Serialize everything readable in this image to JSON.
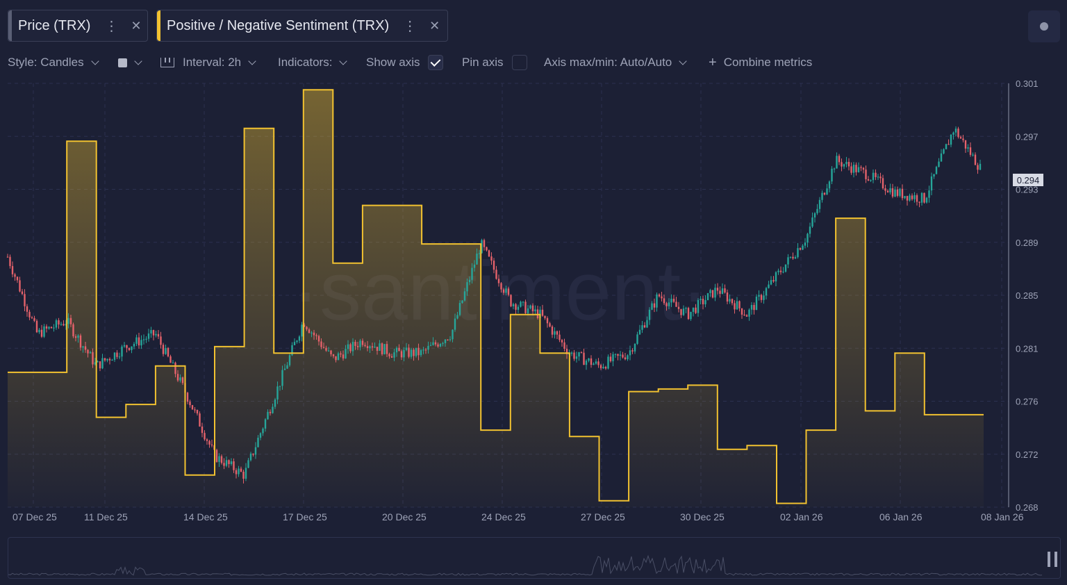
{
  "tabs": [
    {
      "label": "Price (TRX)",
      "accent": "#5a5f75"
    },
    {
      "label": "Positive / Negative Sentiment (TRX)",
      "accent": "#f2c230"
    }
  ],
  "toolbar": {
    "style": "Style: Candles",
    "interval": "Interval: 2h",
    "indicators": "Indicators:",
    "show_axis": "Show axis",
    "show_axis_checked": true,
    "pin_axis": "Pin axis",
    "pin_axis_checked": false,
    "axis_maxmin": "Axis max/min: Auto/Auto",
    "combine": "Combine metrics"
  },
  "icons": [
    "kebab-icon",
    "close-icon",
    "chevron-down-icon",
    "interval-icon",
    "check-icon",
    "plus-icon",
    "settings-dot-icon"
  ],
  "watermark": "·santiment·",
  "colors": {
    "background": "#1c2035",
    "candle_up": "#26a69a",
    "candle_down": "#e5626b",
    "sentiment_line": "#f2c230"
  },
  "chart_data": {
    "type": "candlestick",
    "x_ticks": [
      "07 Dec 25",
      "11 Dec 25",
      "14 Dec 25",
      "17 Dec 25",
      "20 Dec 25",
      "24 Dec 25",
      "27 Dec 25",
      "30 Dec 25",
      "02 Jan 26",
      "06 Jan 26",
      "08 Jan 26"
    ],
    "y_ticks": [
      "0.301",
      "0.297",
      "0.293",
      "0.289",
      "0.285",
      "0.281",
      "0.276",
      "0.272",
      "0.268"
    ],
    "y_range": [
      0.268,
      0.301
    ],
    "current_price": "0.294",
    "price_close_path": [
      {
        "date": "2025-12-06",
        "close": 0.2875
      },
      {
        "date": "2025-12-07",
        "close": 0.2815
      },
      {
        "date": "2025-12-08",
        "close": 0.2825
      },
      {
        "date": "2025-12-09",
        "close": 0.279
      },
      {
        "date": "2025-12-10",
        "close": 0.2805
      },
      {
        "date": "2025-12-11",
        "close": 0.2815
      },
      {
        "date": "2025-12-12",
        "close": 0.277
      },
      {
        "date": "2025-12-13",
        "close": 0.272
      },
      {
        "date": "2025-12-14",
        "close": 0.2705
      },
      {
        "date": "2025-12-15",
        "close": 0.2765
      },
      {
        "date": "2025-12-16",
        "close": 0.2825
      },
      {
        "date": "2025-12-17",
        "close": 0.2795
      },
      {
        "date": "2025-12-18",
        "close": 0.281
      },
      {
        "date": "2025-12-19",
        "close": 0.28
      },
      {
        "date": "2025-12-20",
        "close": 0.28
      },
      {
        "date": "2025-12-21",
        "close": 0.2815
      },
      {
        "date": "2025-12-22",
        "close": 0.2885
      },
      {
        "date": "2025-12-23",
        "close": 0.284
      },
      {
        "date": "2025-12-24",
        "close": 0.283
      },
      {
        "date": "2025-12-25",
        "close": 0.28
      },
      {
        "date": "2025-12-26",
        "close": 0.279
      },
      {
        "date": "2025-12-27",
        "close": 0.28
      },
      {
        "date": "2025-12-28",
        "close": 0.2845
      },
      {
        "date": "2025-12-29",
        "close": 0.283
      },
      {
        "date": "2025-12-30",
        "close": 0.285
      },
      {
        "date": "2025-12-31",
        "close": 0.283
      },
      {
        "date": "2026-01-01",
        "close": 0.286
      },
      {
        "date": "2026-01-02",
        "close": 0.289
      },
      {
        "date": "2026-01-03",
        "close": 0.295
      },
      {
        "date": "2026-01-04",
        "close": 0.294
      },
      {
        "date": "2026-01-05",
        "close": 0.2925
      },
      {
        "date": "2026-01-06",
        "close": 0.292
      },
      {
        "date": "2026-01-07",
        "close": 0.2975
      },
      {
        "date": "2026-01-08",
        "close": 0.294
      }
    ],
    "sentiment_steps": [
      {
        "start": "2025-12-06",
        "end": "2025-12-08",
        "value": 0.2785
      },
      {
        "start": "2025-12-08",
        "end": "2025-12-09",
        "value": 0.2965
      },
      {
        "start": "2025-12-09",
        "end": "2025-12-10",
        "value": 0.275
      },
      {
        "start": "2025-12-10",
        "end": "2025-12-11",
        "value": 0.276
      },
      {
        "start": "2025-12-11",
        "end": "2025-12-12",
        "value": 0.279
      },
      {
        "start": "2025-12-12",
        "end": "2025-12-13",
        "value": 0.2705
      },
      {
        "start": "2025-12-13",
        "end": "2025-12-14",
        "value": 0.2805
      },
      {
        "start": "2025-12-14",
        "end": "2025-12-15",
        "value": 0.2975
      },
      {
        "start": "2025-12-15",
        "end": "2025-12-16",
        "value": 0.28
      },
      {
        "start": "2025-12-16",
        "end": "2025-12-17",
        "value": 0.3005
      },
      {
        "start": "2025-12-17",
        "end": "2025-12-18",
        "value": 0.287
      },
      {
        "start": "2025-12-18",
        "end": "2025-12-20",
        "value": 0.2915
      },
      {
        "start": "2025-12-20",
        "end": "2025-12-22",
        "value": 0.2885
      },
      {
        "start": "2025-12-22",
        "end": "2025-12-23",
        "value": 0.274
      },
      {
        "start": "2025-12-23",
        "end": "2025-12-24",
        "value": 0.283
      },
      {
        "start": "2025-12-24",
        "end": "2025-12-25",
        "value": 0.28
      },
      {
        "start": "2025-12-25",
        "end": "2025-12-26",
        "value": 0.2735
      },
      {
        "start": "2025-12-26",
        "end": "2025-12-27",
        "value": 0.2685
      },
      {
        "start": "2025-12-27",
        "end": "2025-12-28",
        "value": 0.277
      },
      {
        "start": "2025-12-28",
        "end": "2025-12-29",
        "value": 0.2772
      },
      {
        "start": "2025-12-29",
        "end": "2025-12-30",
        "value": 0.2775
      },
      {
        "start": "2025-12-30",
        "end": "2025-12-31",
        "value": 0.2725
      },
      {
        "start": "2025-12-31",
        "end": "2026-01-01",
        "value": 0.2728
      },
      {
        "start": "2026-01-01",
        "end": "2026-01-02",
        "value": 0.2683
      },
      {
        "start": "2026-01-02",
        "end": "2026-01-03",
        "value": 0.274
      },
      {
        "start": "2026-01-03",
        "end": "2026-01-04",
        "value": 0.2905
      },
      {
        "start": "2026-01-04",
        "end": "2026-01-05",
        "value": 0.2755
      },
      {
        "start": "2026-01-05",
        "end": "2026-01-06",
        "value": 0.28
      },
      {
        "start": "2026-01-06",
        "end": "2026-01-08",
        "value": 0.2752
      }
    ]
  }
}
